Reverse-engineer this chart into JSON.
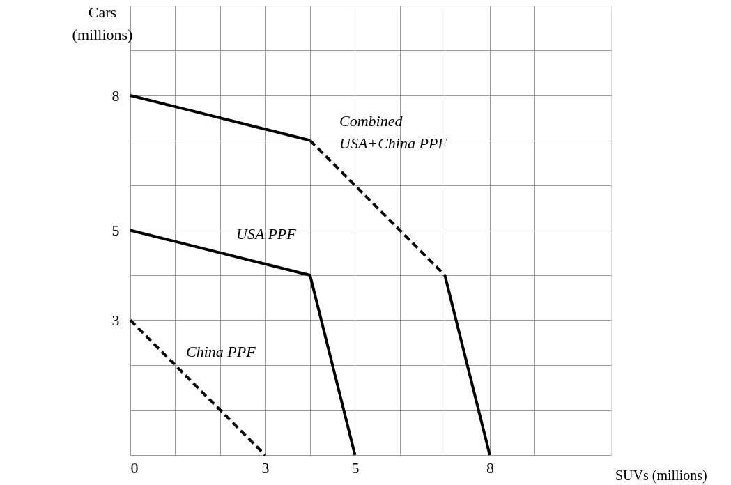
{
  "chart_data": {
    "type": "line",
    "xlabel": "SUVs (millions)",
    "ylabel": "Cars\n(millions)",
    "xlim": [
      0,
      10.7
    ],
    "ylim": [
      0,
      10
    ],
    "xticks": [
      0,
      {
        "value": 1,
        "label": null
      },
      {
        "value": 2,
        "label": null
      },
      3,
      {
        "value": 4,
        "label": null
      },
      5,
      {
        "value": 6,
        "label": null
      },
      {
        "value": 7,
        "label": null
      },
      8,
      {
        "value": 9,
        "label": null
      }
    ],
    "yticks": [
      {
        "value": 0,
        "label": null
      },
      {
        "value": 1,
        "label": null
      },
      {
        "value": 2,
        "label": null
      },
      3,
      {
        "value": 4,
        "label": null
      },
      5,
      {
        "value": 6,
        "label": null
      },
      {
        "value": 7,
        "label": null
      },
      8,
      {
        "value": 9,
        "label": null
      }
    ],
    "grid": true,
    "series": [
      {
        "x": [
          0,
          3
        ],
        "values": [
          3,
          0
        ],
        "color": "#000000",
        "line_style": "dashed"
      },
      {
        "x": [
          0,
          4,
          5
        ],
        "values": [
          5,
          4,
          0
        ],
        "color": "#000000",
        "line_style": "solid"
      },
      {
        "x": [
          0,
          4
        ],
        "values": [
          8,
          7
        ],
        "color": "#000000",
        "line_style": "solid"
      },
      {
        "x": [
          4,
          7
        ],
        "values": [
          7,
          4
        ],
        "color": "#000000",
        "line_style": "dashed"
      },
      {
        "x": [
          7,
          8
        ],
        "values": [
          4,
          0
        ],
        "color": "#000000",
        "line_style": "solid"
      }
    ],
    "annotations": [
      "China PPF",
      "USA PPF",
      "Combined\nUSA+China PPF"
    ]
  }
}
